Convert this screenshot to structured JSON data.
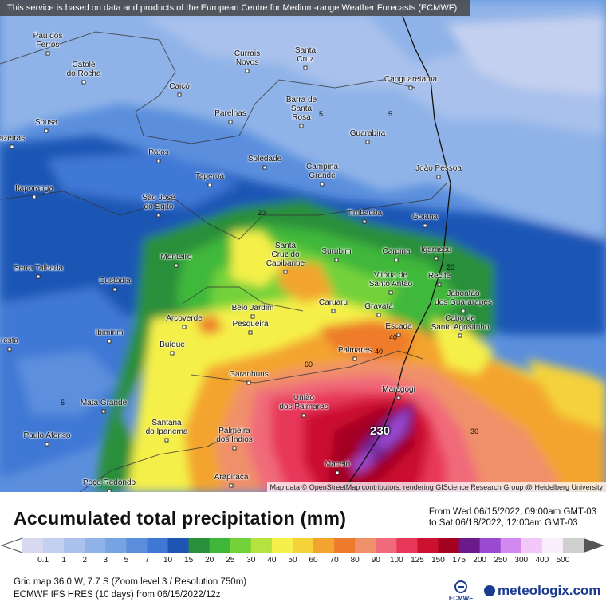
{
  "map": {
    "notice": "This service is based on data and products of the European Centre for Medium-range Weather Forecasts (ECMWF)",
    "attribution": "Map data © OpenStreetMap contributors, rendering GIScience Research Group @ Heidelberg University",
    "peak_value": "230",
    "isoline_labels": [
      "5",
      "5",
      "20",
      "20",
      "40",
      "40",
      "60",
      "30",
      "5"
    ],
    "cities": [
      "Pau dos\nFerros",
      "Catolé\ndo Rocha",
      "Currais\nNovos",
      "Santa\nCruz",
      "Canguaretama",
      "Caicó",
      "Barra de\nSanta\nRosa",
      "Parelhas",
      "Sousa",
      "azeiras",
      "Patos",
      "Guarabira",
      "Soledade",
      "Campina\nGrande",
      "João Pessoa",
      "Taperoá",
      "Itaporanga",
      "São José\ndo Egito",
      "Timbaúba",
      "Goiana",
      "Santa\nCruz do\nCapibaribe",
      "Surubim",
      "Carpina",
      "Igarassu",
      "Monteiro",
      "Serra Talhada",
      "Custódia",
      "Vitória de\nSanto Antão",
      "Recife",
      "Jaboatão\ndos Guararapes",
      "Caruaru",
      "Gravatá",
      "Belo Jardim",
      "Arcoverde",
      "Pesqueira",
      "Escada",
      "Cabo de\nSanto Agostinho",
      "Ibimirim",
      "resta",
      "Buíque",
      "Palmares",
      "Garanhuns",
      "Maragogi",
      "Mata Grande",
      "União\ndos Palmares",
      "Santana\ndo Ipanema",
      "Palmeira\ndos Índios",
      "Paulo Afonso",
      "Maceió",
      "Arapiraca",
      "Poço Redondo"
    ]
  },
  "legend": {
    "title": "Accumulated total precipitation (mm)",
    "from": "From Wed 06/15/2022, 09:00am GMT-03",
    "to": "to Sat 06/18/2022, 12:00am GMT-03",
    "ticks": [
      "0.1",
      "1",
      "2",
      "3",
      "5",
      "7",
      "10",
      "15",
      "20",
      "25",
      "30",
      "40",
      "50",
      "60",
      "70",
      "80",
      "90",
      "100",
      "125",
      "150",
      "175",
      "200",
      "250",
      "300",
      "400",
      "500"
    ],
    "colors": [
      "#d8d8f0",
      "#c4d0ef",
      "#a9c1ec",
      "#8fb3e8",
      "#78a3e2",
      "#5b8fdd",
      "#3f78d5",
      "#1f56b5",
      "#2a8f3a",
      "#3fb83a",
      "#73d23a",
      "#b5e23e",
      "#f5f04a",
      "#f5d23a",
      "#f3a42e",
      "#ee7b2b",
      "#f0906a",
      "#f06a7a",
      "#e8385a",
      "#cc1030",
      "#a40020",
      "#6a1a8a",
      "#9a4ad0",
      "#d28af0",
      "#f2c8fb",
      "#f8eefc",
      "#d0d0d0"
    ],
    "grid_text": "Grid map 36.0 W, 7.7 S (Zoom level 3 / Resolution 750m)",
    "model_text": "ECMWF IFS HRES (10 days) from 06/15/2022/12z",
    "ecmwf_logo": "ECMWF",
    "brand": "meteologix.com"
  }
}
